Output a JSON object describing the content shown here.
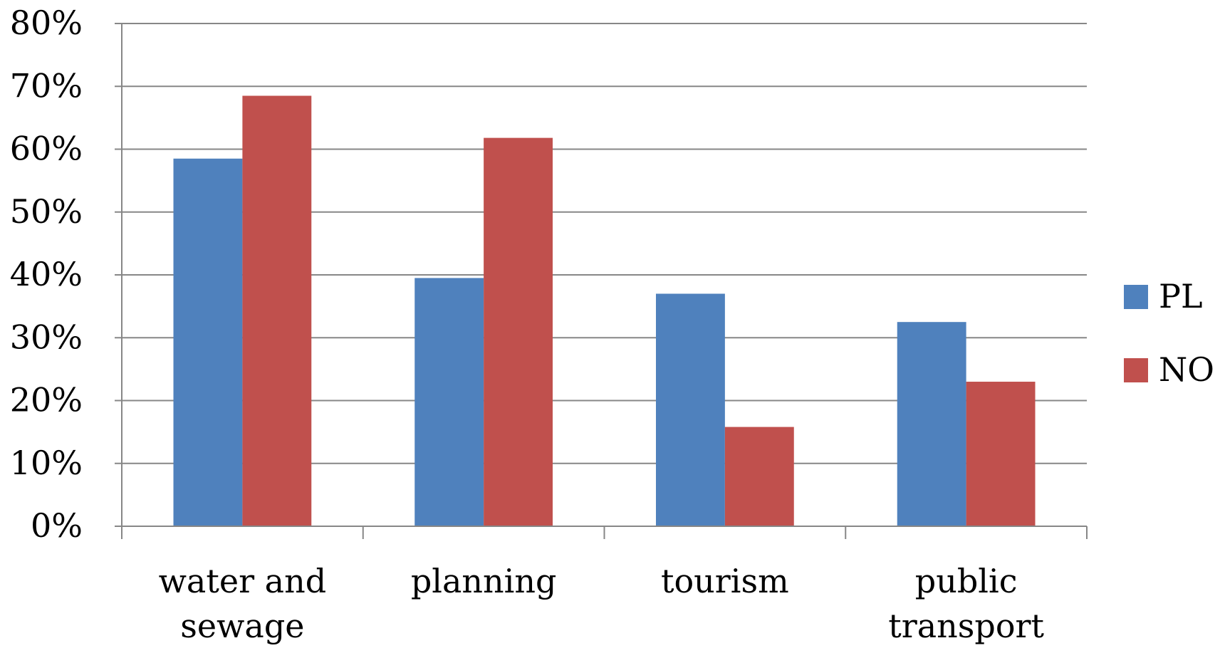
{
  "chart_data": {
    "type": "bar",
    "categories": [
      "water and\nsewage",
      "planning",
      "tourism",
      "public\ntransport"
    ],
    "series": [
      {
        "name": "PL",
        "color": "#4F81BD",
        "values": [
          58.5,
          39.5,
          37,
          32.5
        ]
      },
      {
        "name": "NO",
        "color": "#C0504D",
        "values": [
          68.5,
          61.8,
          15.8,
          23
        ]
      }
    ],
    "y_ticks": [
      "0%",
      "10%",
      "20%",
      "30%",
      "40%",
      "50%",
      "60%",
      "70%",
      "80%"
    ],
    "ylim": [
      0,
      80
    ],
    "grid": true,
    "legend_position": "right",
    "title": "",
    "xlabel": "",
    "ylabel": ""
  }
}
